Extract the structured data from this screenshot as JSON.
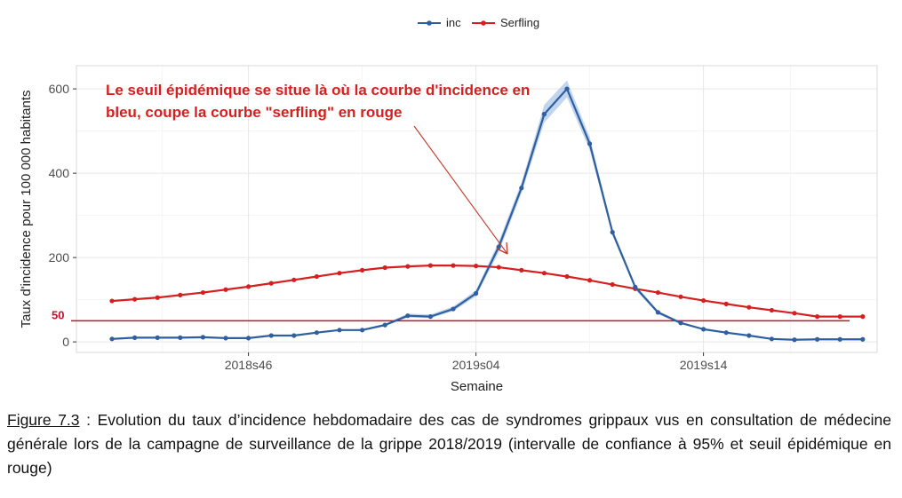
{
  "chart_data": {
    "type": "line",
    "x": [
      "2018s40",
      "2018s41",
      "2018s42",
      "2018s43",
      "2018s44",
      "2018s45",
      "2018s46",
      "2018s47",
      "2018s48",
      "2018s49",
      "2018s50",
      "2018s51",
      "2018s52",
      "2019s01",
      "2019s02",
      "2019s03",
      "2019s04",
      "2019s05",
      "2019s06",
      "2019s07",
      "2019s08",
      "2019s09",
      "2019s10",
      "2019s11",
      "2019s12",
      "2019s13",
      "2019s14",
      "2019s15",
      "2019s16",
      "2019s17",
      "2019s18",
      "2019s19",
      "2019s20",
      "2019s21"
    ],
    "series": [
      {
        "name": "inc",
        "color": "#2f5f9e",
        "values": [
          7,
          10,
          10,
          10,
          11,
          9,
          9,
          15,
          15,
          22,
          28,
          28,
          40,
          62,
          60,
          78,
          115,
          225,
          365,
          540,
          600,
          470,
          260,
          130,
          70,
          45,
          30,
          22,
          15,
          7,
          5,
          6,
          6,
          6
        ],
        "ci_lower": [
          6,
          9,
          9,
          9,
          10,
          8,
          8,
          13,
          13,
          20,
          26,
          26,
          37,
          58,
          56,
          73,
          108,
          212,
          352,
          520,
          580,
          455,
          252,
          124,
          66,
          42,
          28,
          20,
          14,
          6,
          4,
          5,
          5,
          5
        ],
        "ci_upper": [
          8,
          11,
          11,
          11,
          12,
          10,
          10,
          17,
          17,
          24,
          30,
          30,
          43,
          67,
          65,
          84,
          122,
          238,
          378,
          562,
          620,
          486,
          268,
          136,
          74,
          48,
          32,
          24,
          16,
          8,
          6,
          7,
          7,
          7
        ]
      },
      {
        "name": "Serfling",
        "color": "#d42020",
        "values": [
          97,
          101,
          105,
          111,
          117,
          124,
          131,
          139,
          147,
          155,
          163,
          170,
          176,
          179,
          181,
          181,
          180,
          177,
          170,
          163,
          155,
          146,
          136,
          126,
          117,
          107,
          98,
          90,
          82,
          75,
          68,
          60,
          60,
          60
        ]
      }
    ],
    "x_ticks": [
      "2018s46",
      "2019s04",
      "2019s14"
    ],
    "y_ticks": [
      0,
      200,
      400,
      600
    ],
    "ylim": [
      -25,
      655
    ],
    "xlabel": "Semaine",
    "ylabel": "Taux d'incidence pour 100 000 habitants",
    "legend": {
      "placement": "top-center",
      "entries": [
        "inc",
        "Serfling"
      ]
    },
    "grid": true,
    "threshold": {
      "value": 50,
      "label": "50",
      "color": "#c8102e"
    },
    "annotation": {
      "lines": [
        "Le seuil épidémique se situe là où la courbe d'incidence en",
        "bleu, coupe la courbe \"serfling\" en rouge"
      ],
      "color": "#d42020"
    }
  },
  "caption": {
    "figure_label": "Figure 7.3",
    "text": " : Evolution du taux d’incidence hebdomadaire des cas de syndromes grippaux vus en consultation de médecine générale lors de la campagne de surveillance de la grippe 2018/2019 (intervalle de confiance à 95% et seuil épidémique en rouge)"
  }
}
